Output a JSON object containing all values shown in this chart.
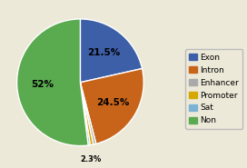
{
  "slices": [
    {
      "label": "Exon",
      "value": 21.5,
      "color": "#3d5fa8",
      "pct_label": "21.5%"
    },
    {
      "label": "Intron",
      "value": 24.5,
      "color": "#c8641a",
      "pct_label": "24.5%"
    },
    {
      "label": "Enhancer",
      "value": 0.7,
      "color": "#aaaaaa",
      "pct_label": ""
    },
    {
      "label": "Promoter",
      "value": 0.8,
      "color": "#d4a800",
      "pct_label": ""
    },
    {
      "label": "Sat",
      "value": 0.5,
      "color": "#7ab3d4",
      "pct_label": ""
    },
    {
      "label": "Non",
      "value": 52.0,
      "color": "#5aaa50",
      "pct_label": "52%"
    }
  ],
  "small_label": "2.3%",
  "title_fontsize": 10,
  "pct_fontsize": 7.5,
  "legend_fontsize": 6.5,
  "background_color": "#ede9d8"
}
